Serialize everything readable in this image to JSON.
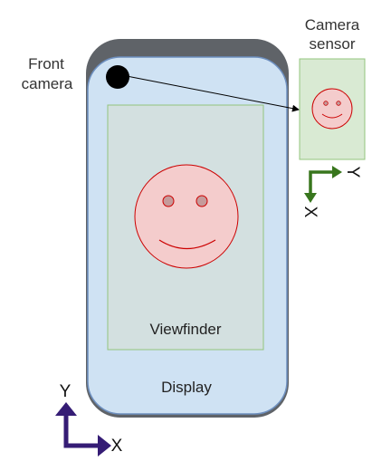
{
  "labels": {
    "front_camera_line1": "Front",
    "front_camera_line2": "camera",
    "camera_sensor_line1": "Camera",
    "camera_sensor_line2": "sensor",
    "viewfinder": "Viewfinder",
    "display": "Display",
    "device_axis_x": "X",
    "device_axis_y": "Y",
    "sensor_axis_x": "X",
    "sensor_axis_y": "Y"
  },
  "colors": {
    "phone_frame": "#5f6368",
    "display_fill": "#cfe2f3",
    "display_stroke": "#6d8fbf",
    "viewfinder_fill": "#d3e0e0",
    "viewfinder_stroke": "#93c47d",
    "face_fill": "#f4cccc",
    "face_stroke": "#cc0000",
    "sensor_fill": "#d9ead3",
    "sensor_stroke": "#93c47d",
    "device_axis": "#351c75",
    "sensor_axis": "#38761d",
    "camera_dot": "#000000",
    "text": "#333333"
  }
}
